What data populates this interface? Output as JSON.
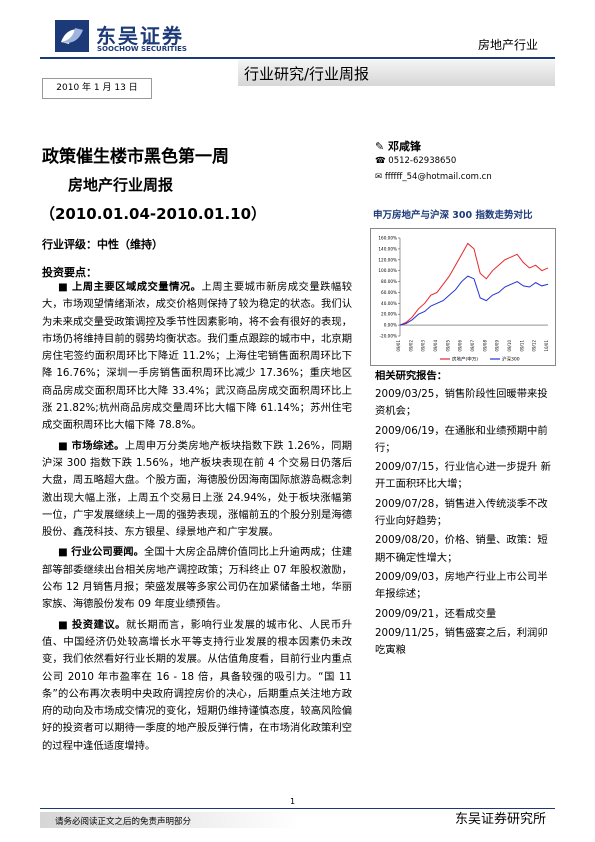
{
  "header": {
    "logo_cn": "东吴证券",
    "logo_en": "SOOCHOW SECURITIES",
    "sector": "房地产行业",
    "report_type": "行业研究/行业周报",
    "date": "2010 年 1 月 13 日"
  },
  "title": "政策催生楼市黑色第一周",
  "subtitle": "房地产行业周报",
  "period": "（2010.01.04-2010.01.10）",
  "rating": "行业评级：中性（维持）",
  "key_points_heading": "投资要点：",
  "key_points": [
    {
      "lead": "上周主要区域成交量情况。",
      "text": "上周主要城市新房成交量跌幅较大，市场观望情绪渐浓，成交价格则保持了较为稳定的状态。我们认为未来成交量受政策调控及季节性因素影响，将不会有很好的表现，市场仍将维持目前的弱势均衡状态。我们重点跟踪的城市中，北京期房住宅签约面积周环比下降近 11.2%；上海住宅销售面积周环比下降 16.76%；深圳一手房销售面积周环比减少 17.36%；重庆地区商品房成交面积周环比大降 33.4%；武汉商品房成交面积周环比上涨 21.82%;杭州商品房成交量周环比大幅下降 61.14%；苏州住宅成交面积周环比大幅下降 78.8%。"
    },
    {
      "lead": "市场综述。",
      "text": "上周申万分类房地产板块指数下跌 1.26%，同期沪深 300 指数下跌 1.56%，地产板块表现在前 4 个交易日仍落后大盘，周五略超大盘。个股方面，海德股份因海南国际旅游岛概念刺激出现大幅上涨，上周五个交易日上涨 24.94%，处于板块涨幅第一位，广宇发展继续上一周的强势表现，涨幅前五的个股分别是海德股份、鑫茂科技、东方银星、绿景地产和广宇发展。"
    },
    {
      "lead": "行业公司要闻。",
      "text": "全国十大房企品牌价值同比上升逾两成；住建部等部委继续出台相关房地产调控政策；万科终止 07 年股权激励，公布 12 月销售月报；荣盛发展等多家公司仍在加紧储备土地，华丽家族、海德股份发布 09 年度业绩预告。"
    },
    {
      "lead": "投资建议。",
      "text": "就长期而言，影响行业发展的城市化、人民币升值、中国经济仍处较高增长水平等支持行业发展的根本因素仍未改变，我们依然看好行业长期的发展。从估值角度看，目前行业内重点公司 2010 年市盈率在 16 - 18 倍，具备较强的吸引力。“国 11 条”的公布再次表明中央政府调控房价的决心，后期重点关注地方政府的动向及市场成交情况的变化，短期仍维持谨慎态度，较高风险偏好的投资者可以期待一季度的地产股反弹行情，在市场消化政策利空的过程中逢低适度增持。"
    }
  ],
  "author": {
    "name": "邓咸锋",
    "phone": "0512-62938650",
    "email": "ffffff_54@hotmail.com.cn"
  },
  "chart_data": {
    "type": "line",
    "title": "申万房地产与沪深 300 指数走势对比",
    "categories": [
      "09/01",
      null,
      "09/02",
      null,
      "09/03",
      null,
      "09/04",
      null,
      "09/05",
      null,
      "09/06",
      null,
      "09/07",
      null,
      "09/08",
      null,
      "09/09",
      null,
      "09/10",
      null,
      "09/11",
      null,
      "09/12",
      null,
      "10/01"
    ],
    "series": [
      {
        "name": "房地产(申万)",
        "color": "#e8262b",
        "values": [
          0,
          5,
          15,
          30,
          40,
          55,
          60,
          75,
          90,
          110,
          130,
          150,
          140,
          95,
          85,
          100,
          110,
          120,
          125,
          130,
          115,
          105,
          110,
          100,
          105
        ]
      },
      {
        "name": "沪深300",
        "color": "#2433d6",
        "values": [
          0,
          3,
          10,
          20,
          25,
          35,
          40,
          45,
          55,
          65,
          80,
          90,
          85,
          50,
          45,
          55,
          60,
          70,
          75,
          80,
          72,
          70,
          78,
          72,
          75
        ]
      }
    ],
    "ylim": [
      -20,
      160
    ],
    "yticks": [
      {
        "value": -20,
        "label": "-20.00%"
      },
      {
        "value": 0,
        "label": "0.00%"
      },
      {
        "value": 20,
        "label": "20.00%"
      },
      {
        "value": 40,
        "label": "40.00%"
      },
      {
        "value": 60,
        "label": "60.00%"
      },
      {
        "value": 80,
        "label": "80.00%"
      },
      {
        "value": 100,
        "label": "100.00%"
      },
      {
        "value": 120,
        "label": "120.00%"
      },
      {
        "value": 140,
        "label": "140.00%"
      },
      {
        "value": 160,
        "label": "160.00%"
      }
    ],
    "grid": false
  },
  "related": {
    "heading": "相关研究报告：",
    "items": [
      "2009/03/25，销售阶段性回暖带来投资机会；",
      "2009/06/19，在通胀和业绩预期中前行；",
      "2009/07/15，行业信心进一步提升 新开工面积环比大增；",
      "2009/07/28，销售进入传统淡季不改行业向好趋势；",
      "2009/08/20，价格、销量、政策：短期不确定性增大；",
      "2009/09/03，房地产行业上市公司半年报综述；",
      "2009/09/21，还看成交量",
      "2009/11/25，销售盛宴之后，利润卯吃寅粮"
    ]
  },
  "footer": {
    "page": "1",
    "disclaimer": "请务必阅读正文之后的免责声明部分",
    "institute": "东吴证券研究所"
  }
}
